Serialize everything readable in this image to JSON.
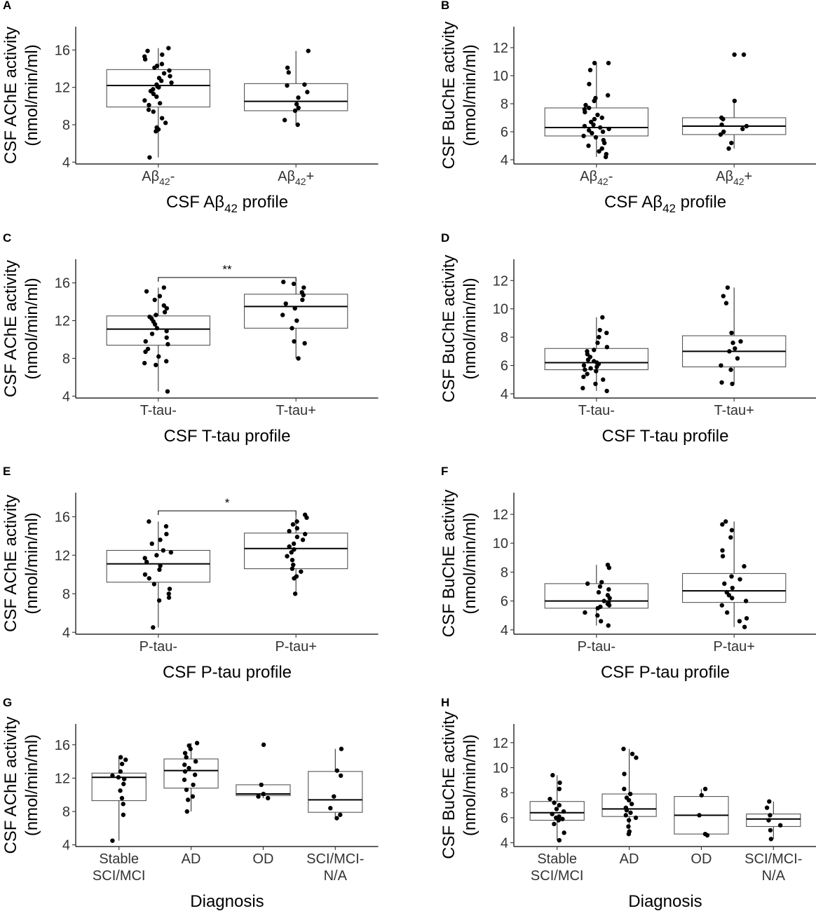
{
  "chart_data": [
    {
      "panel": "A",
      "type": "box",
      "ylabel": [
        "CSF AChE activity",
        "(nmol/min/ml)"
      ],
      "xlabel": "CSF Aβ42 profile",
      "ylim": [
        3.8,
        18.5
      ],
      "yticks": [
        4,
        8,
        12,
        16
      ],
      "categories": [
        "Aβ42-",
        "Aβ42+"
      ],
      "groups": [
        {
          "q1": 9.9,
          "median": 12.2,
          "q3": 13.9,
          "whisker_low": 4.5,
          "whisker_high": 16.2,
          "points": [
            4.5,
            7.3,
            7.5,
            7.7,
            8.2,
            8.7,
            9.4,
            9.6,
            10.1,
            10.3,
            10.6,
            11.0,
            11.3,
            11.6,
            11.8,
            12.0,
            12.1,
            12.3,
            12.5,
            12.7,
            13.0,
            13.2,
            13.5,
            13.8,
            14.1,
            14.3,
            14.5,
            15.0,
            15.3,
            15.5,
            15.9,
            16.2
          ]
        },
        {
          "q1": 9.5,
          "median": 10.5,
          "q3": 12.4,
          "whisker_low": 8.0,
          "whisker_high": 15.9,
          "points": [
            8.0,
            8.5,
            9.5,
            9.8,
            10.2,
            10.9,
            11.5,
            12.2,
            12.3,
            13.6,
            14.1,
            15.9
          ]
        }
      ],
      "significance": null
    },
    {
      "panel": "B",
      "type": "box",
      "ylabel": [
        "CSF BuChE activity",
        "(nmol/min/ml)"
      ],
      "xlabel": "CSF Aβ42 profile",
      "ylim": [
        3.7,
        13.5
      ],
      "yticks": [
        4,
        6,
        8,
        10,
        12
      ],
      "categories": [
        "Aβ42-",
        "Aβ42+"
      ],
      "groups": [
        {
          "q1": 5.7,
          "median": 6.3,
          "q3": 7.7,
          "whisker_low": 4.2,
          "whisker_high": 10.9,
          "points": [
            4.2,
            4.4,
            4.6,
            4.8,
            5.0,
            5.2,
            5.4,
            5.6,
            5.7,
            5.9,
            6.0,
            6.1,
            6.2,
            6.3,
            6.4,
            6.5,
            6.7,
            6.9,
            7.0,
            7.2,
            7.4,
            7.6,
            7.7,
            7.9,
            8.2,
            8.4,
            8.6,
            9.4,
            10.4,
            10.9,
            10.9
          ]
        },
        {
          "q1": 5.8,
          "median": 6.4,
          "q3": 7.0,
          "whisker_low": 4.8,
          "whisker_high": 8.2,
          "points": [
            4.8,
            5.2,
            5.8,
            6.0,
            6.2,
            6.4,
            6.5,
            6.9,
            7.0,
            8.2,
            11.5,
            11.5
          ]
        }
      ],
      "significance": null
    },
    {
      "panel": "C",
      "type": "box",
      "ylabel": [
        "CSF AChE activity",
        "(nmol/min/ml)"
      ],
      "xlabel": "CSF T-tau profile",
      "ylim": [
        3.8,
        18.5
      ],
      "yticks": [
        4,
        8,
        12,
        16
      ],
      "categories": [
        "T-tau-",
        "T-tau+"
      ],
      "groups": [
        {
          "q1": 9.4,
          "median": 11.1,
          "q3": 12.5,
          "whisker_low": 4.5,
          "whisker_high": 15.5,
          "points": [
            4.5,
            7.3,
            7.5,
            7.7,
            8.2,
            8.7,
            9.0,
            9.5,
            9.8,
            10.2,
            10.6,
            10.9,
            11.2,
            11.6,
            11.9,
            12.2,
            12.4,
            12.6,
            12.9,
            13.3,
            13.6,
            14.2,
            14.6,
            15.1,
            15.5
          ]
        },
        {
          "q1": 11.2,
          "median": 13.5,
          "q3": 14.8,
          "whisker_low": 8.0,
          "whisker_high": 16.1,
          "points": [
            8.0,
            9.6,
            9.8,
            11.2,
            12.0,
            12.6,
            13.3,
            13.8,
            14.2,
            14.7,
            15.0,
            15.5,
            15.9,
            16.1
          ]
        }
      ],
      "significance": "**"
    },
    {
      "panel": "D",
      "type": "box",
      "ylabel": [
        "CSF BuChE activity",
        "(nmol/min/ml)"
      ],
      "xlabel": "CSF T-tau profile",
      "ylim": [
        3.7,
        13.5
      ],
      "yticks": [
        4,
        6,
        8,
        10,
        12
      ],
      "categories": [
        "T-tau-",
        "T-tau+"
      ],
      "groups": [
        {
          "q1": 5.7,
          "median": 6.2,
          "q3": 7.2,
          "whisker_low": 4.2,
          "whisker_high": 9.4,
          "points": [
            4.2,
            4.4,
            4.7,
            5.0,
            5.2,
            5.4,
            5.6,
            5.7,
            5.8,
            5.9,
            6.0,
            6.1,
            6.2,
            6.3,
            6.4,
            6.6,
            6.8,
            7.0,
            7.1,
            7.3,
            7.6,
            8.0,
            8.3,
            8.5,
            9.4
          ]
        },
        {
          "q1": 5.9,
          "median": 7.0,
          "q3": 8.1,
          "whisker_low": 4.7,
          "whisker_high": 11.5,
          "points": [
            4.7,
            4.8,
            5.7,
            6.0,
            6.5,
            7.0,
            7.2,
            7.6,
            7.7,
            8.3,
            10.4,
            10.9,
            11.5
          ]
        }
      ],
      "significance": null
    },
    {
      "panel": "E",
      "type": "box",
      "ylabel": [
        "CSF AChE activity",
        "(nmol/min/ml)"
      ],
      "xlabel": "CSF P-tau profile",
      "ylim": [
        3.8,
        18.5
      ],
      "yticks": [
        4,
        8,
        12,
        16
      ],
      "categories": [
        "P-tau-",
        "P-tau+"
      ],
      "groups": [
        {
          "q1": 9.2,
          "median": 11.1,
          "q3": 12.5,
          "whisker_low": 4.5,
          "whisker_high": 15.5,
          "points": [
            4.5,
            7.3,
            7.6,
            8.0,
            8.5,
            9.0,
            9.6,
            10.0,
            10.5,
            10.9,
            11.3,
            11.7,
            12.0,
            12.3,
            12.5,
            13.2,
            13.6,
            14.2,
            15.0,
            15.5
          ]
        },
        {
          "q1": 10.6,
          "median": 12.7,
          "q3": 14.3,
          "whisker_low": 8.0,
          "whisker_high": 16.2,
          "points": [
            8.0,
            9.6,
            9.8,
            10.3,
            10.6,
            11.0,
            11.5,
            11.9,
            12.3,
            12.6,
            12.9,
            13.2,
            13.6,
            13.9,
            14.2,
            14.5,
            14.8,
            15.2,
            15.5,
            15.9,
            16.2
          ]
        }
      ],
      "significance": "*"
    },
    {
      "panel": "F",
      "type": "box",
      "ylabel": [
        "CSF BuChE activity",
        "(nmol/min/ml)"
      ],
      "xlabel": "CSF P-tau profile",
      "ylim": [
        3.7,
        13.5
      ],
      "yticks": [
        4,
        6,
        8,
        10,
        12
      ],
      "categories": [
        "P-tau-",
        "P-tau+"
      ],
      "groups": [
        {
          "q1": 5.5,
          "median": 6.0,
          "q3": 7.2,
          "whisker_low": 4.3,
          "whisker_high": 8.5,
          "points": [
            4.3,
            4.6,
            5.0,
            5.2,
            5.5,
            5.6,
            5.7,
            5.8,
            5.9,
            6.0,
            6.2,
            6.4,
            6.6,
            6.8,
            7.0,
            7.2,
            7.3,
            8.3,
            8.5
          ]
        },
        {
          "q1": 5.9,
          "median": 6.7,
          "q3": 7.9,
          "whisker_low": 4.2,
          "whisker_high": 11.5,
          "points": [
            4.2,
            4.6,
            4.8,
            5.2,
            5.7,
            6.0,
            6.2,
            6.4,
            6.6,
            6.9,
            7.2,
            7.5,
            7.7,
            8.4,
            9.1,
            9.5,
            10.4,
            10.9,
            11.3,
            11.5
          ]
        }
      ],
      "significance": null
    },
    {
      "panel": "G",
      "type": "box",
      "ylabel": [
        "CSF AChE activity",
        "(nmol/min/ml)"
      ],
      "xlabel": "Diagnosis",
      "ylim": [
        3.8,
        18.5
      ],
      "yticks": [
        4,
        8,
        12,
        16
      ],
      "categories": [
        "Stable\nSCI/MCI",
        "AD",
        "OD",
        "SCI/MCI-\nN/A"
      ],
      "groups": [
        {
          "q1": 9.3,
          "median": 12.1,
          "q3": 12.6,
          "whisker_low": 4.5,
          "whisker_high": 14.5,
          "points": [
            4.5,
            7.6,
            8.9,
            9.6,
            10.5,
            11.3,
            11.9,
            12.1,
            12.3,
            12.8,
            13.7,
            14.2,
            14.5
          ]
        },
        {
          "q1": 10.8,
          "median": 12.9,
          "q3": 14.3,
          "whisker_low": 8.0,
          "whisker_high": 16.2,
          "points": [
            8.0,
            9.4,
            9.8,
            10.6,
            11.2,
            11.8,
            12.4,
            12.8,
            13.2,
            13.6,
            14.0,
            14.5,
            15.0,
            15.5,
            15.9,
            16.2
          ]
        },
        {
          "q1": 9.9,
          "median": 10.1,
          "q3": 11.2,
          "whisker_low": 9.6,
          "whisker_high": 11.2,
          "points": [
            9.6,
            9.8,
            10.1,
            11.2,
            16.0
          ]
        },
        {
          "q1": 7.9,
          "median": 9.4,
          "q3": 12.8,
          "whisker_low": 7.2,
          "whisker_high": 15.5,
          "points": [
            7.2,
            7.6,
            8.4,
            9.8,
            12.3,
            12.9,
            15.5
          ]
        }
      ],
      "significance": null
    },
    {
      "panel": "H",
      "type": "box",
      "ylabel": [
        "CSF BuChE activity",
        "(nmol/min/ml)"
      ],
      "xlabel": "Diagnosis",
      "ylim": [
        3.7,
        13.5
      ],
      "yticks": [
        4,
        6,
        8,
        10,
        12
      ],
      "categories": [
        "Stable\nSCI/MCI",
        "AD",
        "OD",
        "SCI/MCI-\nN/A"
      ],
      "groups": [
        {
          "q1": 5.8,
          "median": 6.4,
          "q3": 7.3,
          "whisker_low": 4.2,
          "whisker_high": 9.4,
          "points": [
            4.2,
            4.8,
            5.5,
            5.8,
            5.9,
            6.0,
            6.1,
            6.3,
            6.5,
            6.7,
            7.0,
            7.2,
            7.5,
            8.3,
            8.8,
            9.4
          ]
        },
        {
          "q1": 6.1,
          "median": 6.7,
          "q3": 7.9,
          "whisker_low": 4.7,
          "whisker_high": 11.5,
          "points": [
            4.7,
            4.9,
            5.3,
            5.8,
            6.0,
            6.2,
            6.4,
            6.6,
            6.8,
            7.1,
            7.4,
            7.6,
            7.9,
            8.3,
            9.5,
            10.8,
            11.1,
            11.5
          ]
        },
        {
          "q1": 4.7,
          "median": 6.2,
          "q3": 7.7,
          "whisker_low": 4.7,
          "whisker_high": 8.3,
          "points": [
            4.6,
            4.7,
            6.2,
            7.8,
            8.3
          ]
        },
        {
          "q1": 5.3,
          "median": 5.9,
          "q3": 6.3,
          "whisker_low": 4.3,
          "whisker_high": 7.3,
          "points": [
            4.3,
            5.0,
            5.4,
            5.8,
            6.2,
            6.8,
            7.3
          ]
        }
      ],
      "significance": null
    }
  ]
}
